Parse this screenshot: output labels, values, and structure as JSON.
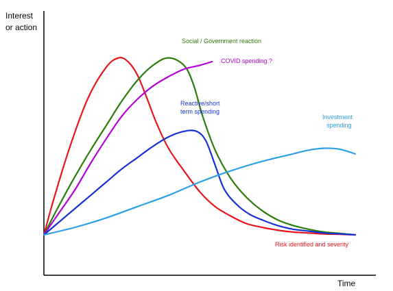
{
  "chart_data": {
    "type": "line",
    "title": "",
    "ylabel": [
      "Interest",
      "or action"
    ],
    "xlabel": "Time",
    "xlim": [
      0,
      100
    ],
    "ylim": [
      0,
      100
    ],
    "grid": false,
    "legend": "none",
    "series": [
      {
        "color": "#e8141c",
        "x": [
          0,
          3,
          8,
          14,
          20,
          24,
          27,
          30,
          33,
          36,
          40,
          45,
          50,
          55,
          60,
          65,
          70,
          75,
          80,
          85,
          90,
          95,
          100
        ],
        "y": [
          0,
          18,
          45,
          72,
          89,
          94,
          92,
          85,
          73,
          60,
          46,
          34,
          23,
          15,
          10,
          6,
          4,
          2.5,
          1.5,
          1,
          0.5,
          0.3,
          0
        ]
      },
      {
        "color": "#2b7d0a",
        "x": [
          0,
          5,
          10,
          15,
          20,
          25,
          30,
          35,
          40,
          45,
          48,
          51,
          55,
          60,
          65,
          70,
          75,
          80,
          85,
          90,
          95,
          100
        ],
        "y": [
          0,
          16,
          31,
          45,
          58,
          71,
          82,
          90,
          94,
          90,
          80,
          63,
          45,
          30,
          20,
          13,
          8,
          5,
          3,
          1.5,
          0.8,
          0
        ]
      },
      {
        "color": "#b400d8",
        "x": [
          0,
          5,
          10,
          15,
          20,
          25,
          30,
          35,
          40,
          45,
          50,
          54
        ],
        "y": [
          0,
          12,
          24,
          38,
          51,
          63,
          72,
          79,
          84,
          88,
          90,
          92
        ]
      },
      {
        "color": "#1530d8",
        "x": [
          0,
          5,
          10,
          15,
          20,
          25,
          30,
          35,
          40,
          45,
          49,
          52,
          55,
          58,
          62,
          66,
          70,
          75,
          80,
          85,
          90,
          95,
          100
        ],
        "y": [
          0,
          7,
          14,
          21,
          28,
          35,
          41,
          47,
          52,
          55,
          55,
          50,
          37,
          24,
          16,
          11,
          8,
          5,
          3,
          2,
          1,
          0.5,
          0
        ]
      },
      {
        "color": "#2a9fe6",
        "x": [
          0,
          10,
          20,
          30,
          40,
          50,
          60,
          70,
          80,
          85,
          90,
          95,
          100
        ],
        "y": [
          0,
          4,
          9,
          15,
          21,
          28,
          34,
          39,
          43,
          45,
          46,
          45.5,
          43
        ]
      }
    ],
    "annotations": [
      {
        "text": "Social / Government reaction",
        "color": "#2b7d0a"
      },
      {
        "text": "COVID spending ?",
        "color": "#b400d8"
      },
      {
        "text": "Reactive/short",
        "color": "#1530d8"
      },
      {
        "text": "term spending",
        "color": "#1530d8"
      },
      {
        "text": "Investment",
        "color": "#2a9fe6"
      },
      {
        "text": "spending",
        "color": "#2a9fe6"
      },
      {
        "text": "Risk identified and severity",
        "color": "#e8141c"
      }
    ]
  }
}
